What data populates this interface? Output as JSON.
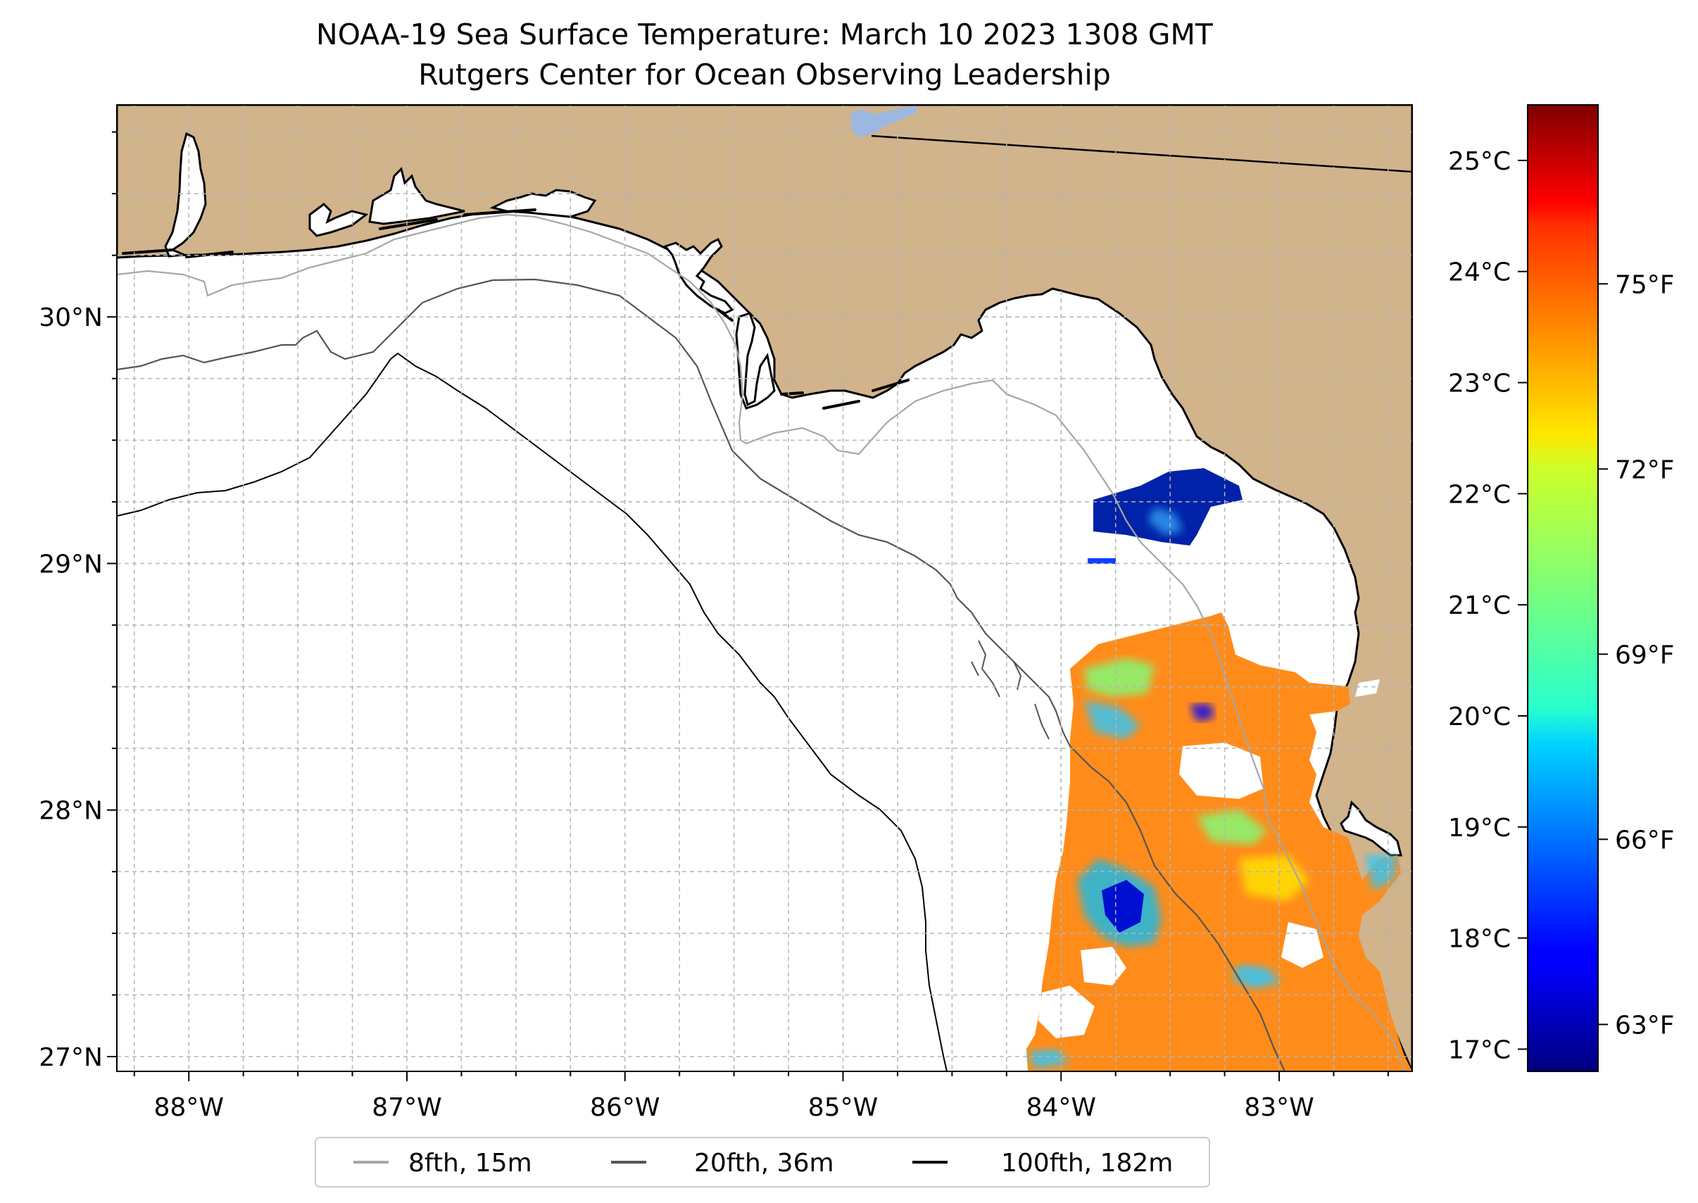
{
  "title": {
    "line1": "NOAA-19 Sea Surface Temperature: March 10 2023 1308 GMT",
    "line2": "Rutgers Center for Ocean Observing Leadership"
  },
  "map": {
    "lon_range": [
      -88.33,
      -82.39
    ],
    "lat_range": [
      26.94,
      30.86
    ],
    "land_color": "#d1b38c",
    "water_color": "#ffffff",
    "lake_color": "#9db8e0",
    "lat_ticks": [
      {
        "value": 27,
        "label": "27°N"
      },
      {
        "value": 28,
        "label": "28°N"
      },
      {
        "value": 29,
        "label": "29°N"
      },
      {
        "value": 30,
        "label": "30°N"
      }
    ],
    "lon_ticks": [
      {
        "value": -88,
        "label": "88°W"
      },
      {
        "value": -87,
        "label": "87°W"
      },
      {
        "value": -86,
        "label": "86°W"
      },
      {
        "value": -85,
        "label": "85°W"
      },
      {
        "value": -84,
        "label": "84°W"
      },
      {
        "value": -83,
        "label": "83°W"
      }
    ]
  },
  "colorbar": {
    "cmap": "jet",
    "celsius_ticks": [
      {
        "value": 17,
        "label": "17°C"
      },
      {
        "value": 18,
        "label": "18°C"
      },
      {
        "value": 19,
        "label": "19°C"
      },
      {
        "value": 20,
        "label": "20°C"
      },
      {
        "value": 21,
        "label": "21°C"
      },
      {
        "value": 22,
        "label": "22°C"
      },
      {
        "value": 23,
        "label": "23°C"
      },
      {
        "value": 24,
        "label": "24°C"
      },
      {
        "value": 25,
        "label": "25°C"
      }
    ],
    "fahrenheit_ticks": [
      {
        "value": 63,
        "label": "63°F"
      },
      {
        "value": 66,
        "label": "66°F"
      },
      {
        "value": 69,
        "label": "69°F"
      },
      {
        "value": 72,
        "label": "72°F"
      },
      {
        "value": 75,
        "label": "75°F"
      }
    ],
    "range_c": [
      16.8,
      25.5
    ]
  },
  "legend": {
    "items": [
      {
        "label": "8fth, 15m",
        "color": "#a6a6a6"
      },
      {
        "label": "20fth, 36m",
        "color": "#555555"
      },
      {
        "label": "100fth, 182m",
        "color": "#000000"
      }
    ]
  }
}
